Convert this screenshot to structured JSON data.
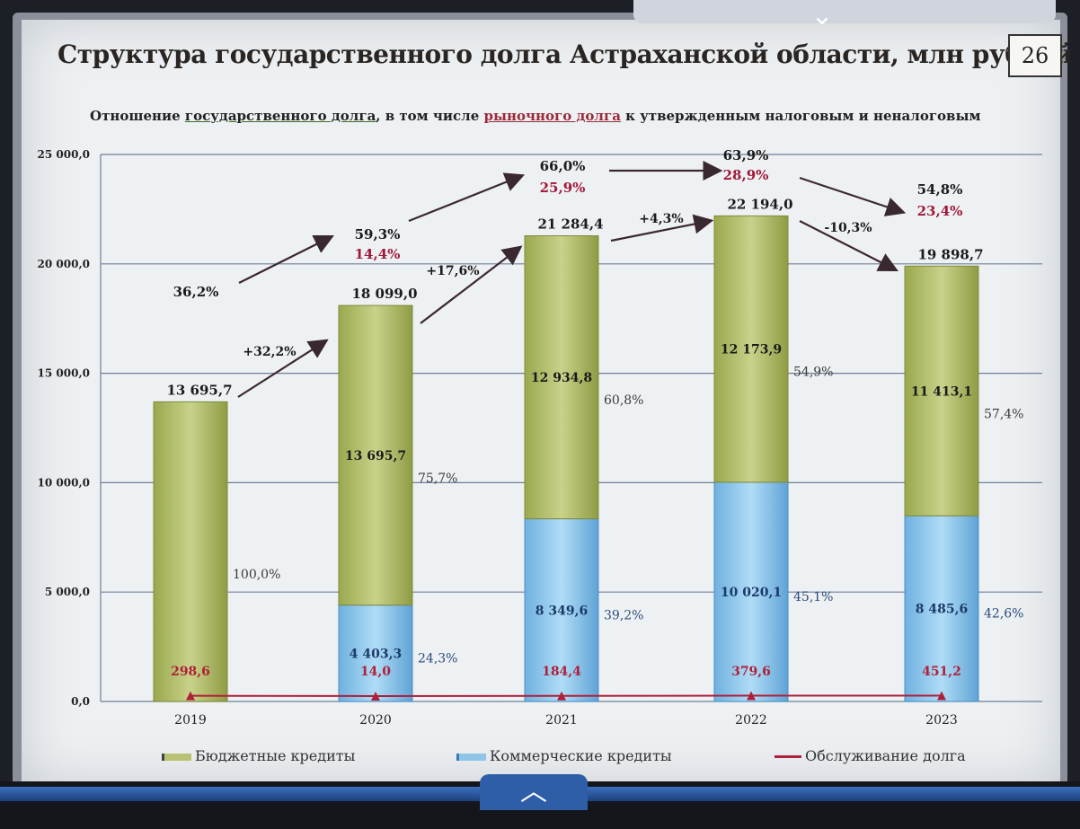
{
  "slide": {
    "title": "Структура государственного долга Астраханской области, млн рублей",
    "page_number": "26",
    "subtitle": {
      "part1": "Отношение ",
      "link1": "государственного долга",
      "part2": ", в том числе ",
      "link2": "рыночного долга",
      "part3": " к утвержденным налоговым и неналоговым"
    },
    "nav": {
      "top_icon": "chevron-down-icon",
      "bottom_icon": "chevron-up-icon"
    }
  },
  "colors": {
    "budget": "#b8c272",
    "commercial": "#8fc6e8",
    "service": "#b0203a",
    "arrow": "#3a2830",
    "market_ratio": "#a01838"
  },
  "chart_data": {
    "type": "bar",
    "stacked": true,
    "categories": [
      "2019",
      "2020",
      "2021",
      "2022",
      "2023"
    ],
    "yticks": [
      "0,0",
      "5 000,0",
      "10 000,0",
      "15 000,0",
      "20 000,0",
      "25 000,0"
    ],
    "ylim": [
      0,
      25000
    ],
    "grid": true,
    "series": [
      {
        "name": "Бюджетные кредиты",
        "values": [
          13695.7,
          13695.7,
          12934.8,
          12173.9,
          11413.1
        ],
        "labels": [
          "",
          "13 695,7",
          "12 934,8",
          "12 173,9",
          "11 413,1"
        ],
        "share_labels": [
          "100,0%",
          "75,7%",
          "60,8%",
          "54,9%",
          "57,4%"
        ]
      },
      {
        "name": "Коммерческие кредиты",
        "values": [
          0,
          4403.3,
          8349.6,
          10020.1,
          8485.6
        ],
        "labels": [
          "",
          "4 403,3",
          "8 349,6",
          "10 020,1",
          "8 485,6"
        ],
        "share_labels": [
          "",
          "24,3%",
          "39,2%",
          "45,1%",
          "42,6%"
        ]
      },
      {
        "name": "Обслуживание долга",
        "type": "line",
        "values": [
          298.6,
          14.0,
          184.4,
          379.6,
          451.2
        ],
        "labels": [
          "298,6",
          "14,0",
          "184,4",
          "379,6",
          "451,2"
        ]
      }
    ],
    "totals": [
      13695.7,
      18099.0,
      21284.4,
      22194.0,
      19898.7
    ],
    "total_labels": [
      "13 695,7",
      "18 099,0",
      "21 284,4",
      "22 194,0",
      "19 898,7"
    ],
    "growth_labels": [
      "+32,2%",
      "+17,6%",
      "+4,3%",
      "-10,3%"
    ],
    "debt_ratio_labels": [
      "36,2%",
      "59,3%",
      "66,0%",
      "63,9%",
      "54,8%"
    ],
    "market_ratio_labels": [
      "",
      "14,4%",
      "25,9%",
      "28,9%",
      "23,4%"
    ]
  }
}
